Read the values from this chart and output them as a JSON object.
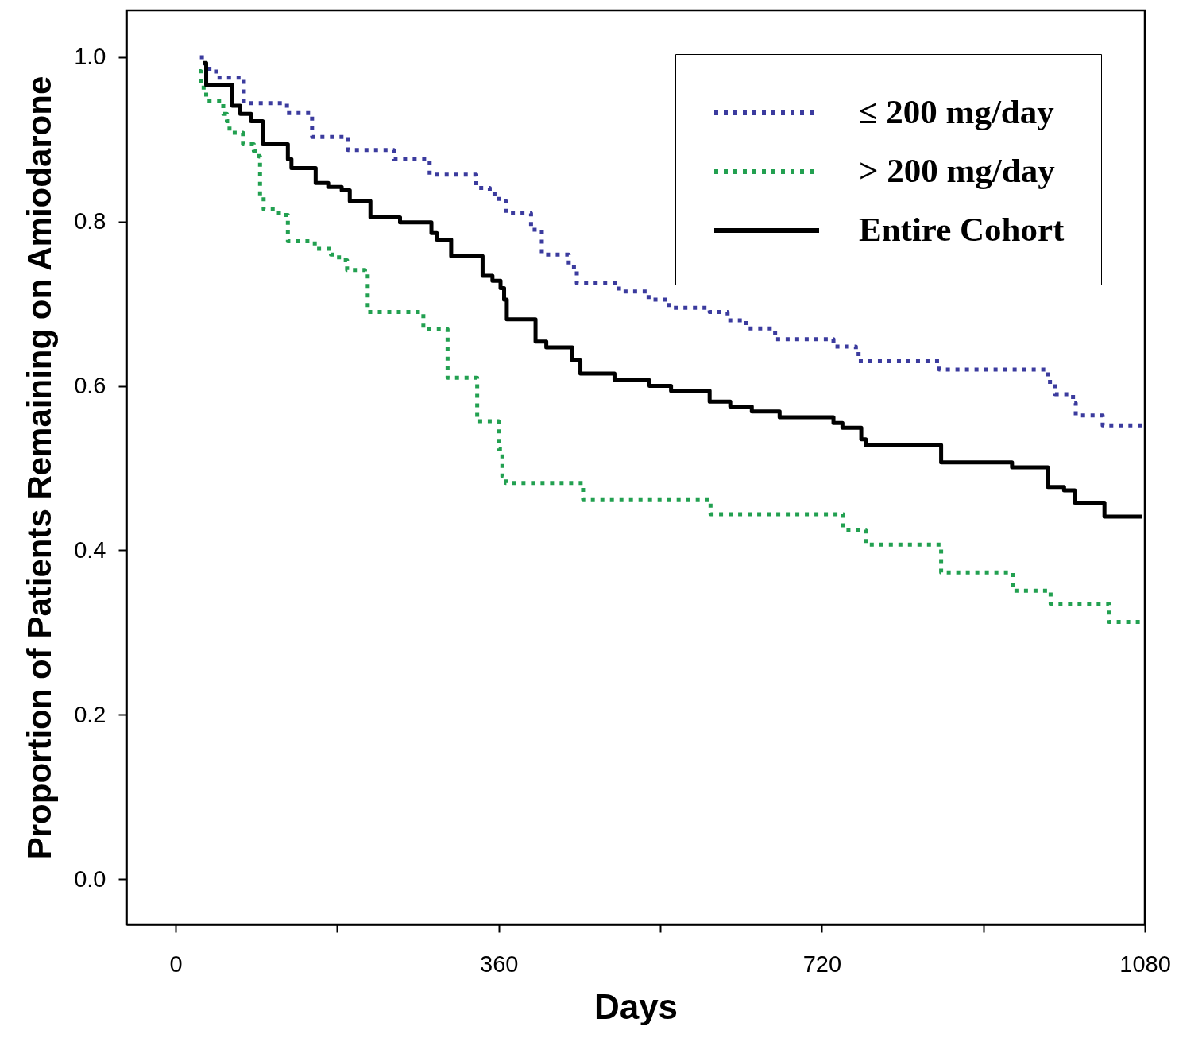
{
  "chart_data": {
    "type": "step",
    "xlabel": "Days",
    "ylabel": "Proportion of Patients Remaining on Amiodarone",
    "xlim": [
      -55,
      1080
    ],
    "ylim": [
      -0.055,
      1.057
    ],
    "xticks": [
      0,
      {
        "value": 180,
        "label": null
      },
      360,
      {
        "value": 540,
        "label": null
      },
      720,
      {
        "value": 900,
        "label": null
      },
      1080
    ],
    "yticks": [
      {
        "value": 0,
        "label": "0.0"
      },
      0.2,
      0.4,
      0.6,
      0.8,
      {
        "value": 1,
        "label": "1.0"
      }
    ],
    "grid": false,
    "legend": "top right",
    "series": [
      {
        "name": "≤ 200 mg/day",
        "color": "#3b3b9e",
        "line_style": "dotted",
        "x": [
          27,
          33,
          45,
          76,
          124,
          152,
          192,
          243,
          283,
          335,
          350,
          360,
          368,
          396,
          408,
          438,
          447,
          494,
          527,
          550,
          595,
          615,
          636,
          668,
          733,
          758,
          761,
          851,
          972,
          980,
          1000,
          1003,
          1033,
          1077
        ],
        "values": [
          1.0,
          0.986,
          0.975,
          0.944,
          0.932,
          0.903,
          0.887,
          0.876,
          0.857,
          0.841,
          0.834,
          0.825,
          0.81,
          0.79,
          0.76,
          0.745,
          0.725,
          0.715,
          0.705,
          0.695,
          0.69,
          0.68,
          0.67,
          0.657,
          0.648,
          0.643,
          0.63,
          0.62,
          0.605,
          0.59,
          0.579,
          0.564,
          0.552,
          0.552
        ]
      },
      {
        "name": "> 200 mg/day",
        "color": "#22a050",
        "line_style": "dotted",
        "x": [
          26,
          28,
          34,
          53,
          57,
          60,
          75,
          87,
          93,
          94,
          98,
          115,
          125,
          155,
          173,
          182,
          191,
          211,
          214,
          276,
          303,
          336,
          360,
          364,
          368,
          454,
          596,
          744,
          769,
          853,
          933,
          975,
          1040,
          1076
        ],
        "values": [
          0.983,
          0.963,
          0.947,
          0.931,
          0.922,
          0.908,
          0.894,
          0.886,
          0.879,
          0.831,
          0.815,
          0.808,
          0.776,
          0.767,
          0.76,
          0.753,
          0.741,
          0.738,
          0.69,
          0.669,
          0.61,
          0.557,
          0.523,
          0.49,
          0.482,
          0.462,
          0.444,
          0.425,
          0.407,
          0.373,
          0.351,
          0.335,
          0.313,
          0.313
        ]
      },
      {
        "name": "Entire Cohort",
        "color": "#000000",
        "line_style": "solid",
        "x": [
          30,
          34,
          63,
          72,
          84,
          97,
          125,
          129,
          156,
          170,
          185,
          194,
          217,
          250,
          285,
          291,
          307,
          342,
          353,
          362,
          366,
          369,
          401,
          413,
          442,
          451,
          489,
          528,
          552,
          595,
          618,
          642,
          673,
          733,
          743,
          764,
          769,
          853,
          932,
          972,
          990,
          1002,
          1035,
          1077
        ],
        "values": [
          0.993,
          0.966,
          0.941,
          0.931,
          0.922,
          0.894,
          0.876,
          0.865,
          0.847,
          0.842,
          0.838,
          0.825,
          0.805,
          0.799,
          0.786,
          0.778,
          0.758,
          0.734,
          0.728,
          0.719,
          0.705,
          0.681,
          0.654,
          0.647,
          0.631,
          0.615,
          0.607,
          0.6,
          0.594,
          0.581,
          0.575,
          0.569,
          0.562,
          0.555,
          0.549,
          0.535,
          0.528,
          0.507,
          0.501,
          0.477,
          0.473,
          0.458,
          0.441,
          0.441
        ]
      }
    ]
  }
}
